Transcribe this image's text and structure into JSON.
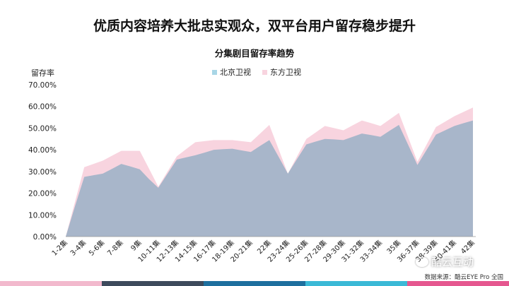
{
  "headline": "优质内容培养大批忠实观众，双平台用户留存稳步提升",
  "source": "数据来源：酷云EYE Pro 全国",
  "watermark": "酷云互动",
  "watermark_icon": "chat-bubble-icon",
  "footer_colors": [
    "#f2b9cd",
    "#3d4a5c",
    "#1e6f9e",
    "#3bb9d6",
    "#e5578f"
  ],
  "chart_data": {
    "type": "area",
    "title": "分集剧目留存率趋势",
    "ylabel": "留存率",
    "xlabel": "",
    "ylim": [
      0,
      70
    ],
    "yticks": [
      "0.00%",
      "10.00%",
      "20.00%",
      "30.00%",
      "40.00%",
      "50.00%",
      "60.00%",
      "70.00%"
    ],
    "legend_position": "top-center",
    "grid": false,
    "categories": [
      "1-2集",
      "",
      "3-4集",
      "",
      "5-6集",
      "",
      "7-8集",
      "",
      "9集",
      "",
      "10-11集",
      "",
      "12-13集",
      "",
      "14-15集",
      "",
      "16-17集",
      "",
      "18-19集",
      "",
      "20-21集",
      "",
      "22集",
      "",
      "23-24集",
      "",
      "25-26集",
      "",
      "27-28集",
      "",
      "29-30集",
      "",
      "31-32集",
      "",
      "33-34集",
      "",
      "35集",
      "",
      "36-37集",
      "",
      "38-39集",
      "",
      "40-41集",
      "",
      "42集"
    ],
    "series": [
      {
        "name": "北京卫视",
        "color": "#a8b6ca",
        "values": [
          0,
          14,
          27.5,
          28.3,
          29,
          31.2,
          33.5,
          32.3,
          31,
          26.5,
          22.5,
          29,
          35.5,
          36.5,
          37.5,
          38.7,
          40,
          40.3,
          40.5,
          39.7,
          39,
          41.8,
          44.5,
          36.8,
          29,
          35.8,
          42.5,
          43.8,
          45,
          44.8,
          44.5,
          46,
          47.5,
          46.8,
          46,
          48.8,
          51.5,
          42.3,
          33,
          40,
          47,
          49,
          51,
          52.3,
          53.5
        ]
      },
      {
        "name": "东方卫视",
        "color": "#f8d4df",
        "values": [
          0,
          16,
          32,
          33.5,
          35,
          37.3,
          39.5,
          39.5,
          39.5,
          31.3,
          23,
          30,
          37,
          40.3,
          43.5,
          44,
          44.5,
          44.5,
          44.5,
          44,
          43.5,
          47.5,
          51.5,
          40.3,
          29,
          37,
          45,
          48,
          51,
          50,
          49,
          51.3,
          53.5,
          52.3,
          51,
          54,
          57,
          45.8,
          34.5,
          42.5,
          50.5,
          53,
          55.5,
          57.5,
          59.5
        ]
      }
    ]
  }
}
